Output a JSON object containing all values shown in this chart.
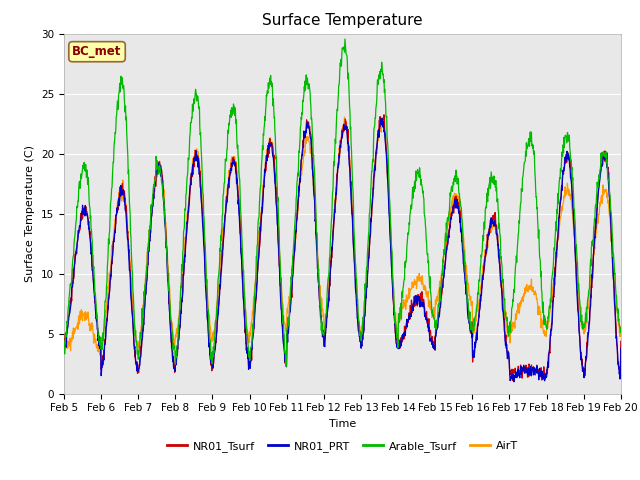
{
  "title": "Surface Temperature",
  "ylabel": "Surface Temperature (C)",
  "xlabel": "Time",
  "annotation": "BC_met",
  "ylim": [
    0,
    30
  ],
  "xlim": [
    5.0,
    20.0
  ],
  "xtick_labels": [
    "Feb 5",
    "Feb 6",
    "Feb 7",
    "Feb 8",
    "Feb 9",
    "Feb 10",
    "Feb 11",
    "Feb 12",
    "Feb 13",
    "Feb 14",
    "Feb 15",
    "Feb 16",
    "Feb 17",
    "Feb 18",
    "Feb 19",
    "Feb 20"
  ],
  "xtick_positions": [
    5,
    6,
    7,
    8,
    9,
    10,
    11,
    12,
    13,
    14,
    15,
    16,
    17,
    18,
    19,
    20
  ],
  "ytick_positions": [
    0,
    5,
    10,
    15,
    20,
    25,
    30
  ],
  "colors": {
    "NR01_Tsurf": "#cc0000",
    "NR01_PRT": "#0000cc",
    "Arable_Tsurf": "#00bb00",
    "AirT": "#ff9900"
  },
  "legend_labels": [
    "NR01_Tsurf",
    "NR01_PRT",
    "Arable_Tsurf",
    "AirT"
  ],
  "bg_color": "#e8e8e8",
  "title_fontsize": 11,
  "axis_fontsize": 8,
  "tick_fontsize": 7.5,
  "legend_fontsize": 8
}
